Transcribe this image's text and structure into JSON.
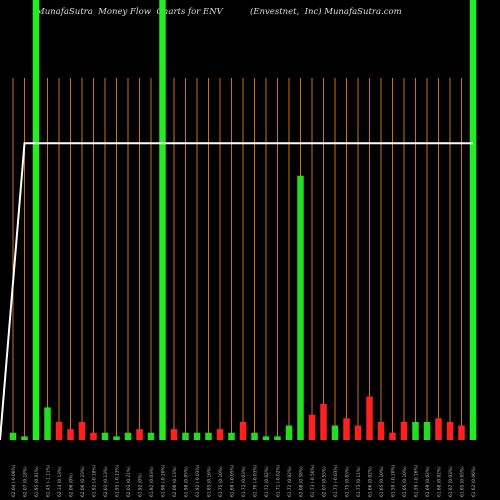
{
  "header": {
    "title_left": "MunafaSutra  Money Flow  Charts for ENV",
    "title_right": "(Envestnet,  Inc) MunafaSutra.com"
  },
  "colors": {
    "background": "#000000",
    "grid": "#c8741a",
    "up": "#22dd22",
    "down": "#ff2020",
    "price_line": "#ffffff",
    "tall_bar": "#22ee22",
    "label": "#bbbbbb"
  },
  "chart_data": {
    "type": "bar",
    "title": "MunafaSutra  Money Flow  Charts for ENV",
    "subtitle": "(Envestnet,  Inc) MunafaSutra.com",
    "categories": [
      "62.04 (-0.06%)",
      "62.07 (0.18%)",
      "61.95 (0.81%)",
      "61.45 (-1.11%)",
      "62.14 (0.13%)",
      "62.06 (0%)",
      "62.06 (0.23%)",
      "61.92 (-0.18%)",
      "62.03 (0.13%)",
      "61.95 (-0.13%)",
      "62.03 (0.21%)",
      "61.92 (0%)",
      "61.92 (0.03%)",
      "61.90 (-0.10%)",
      "62.00 (0.13%)",
      "61.98 (0.05%)",
      "61.92 (-0.03%)",
      "61.85 (0.16%)",
      "61.75 (0.10%)",
      "61.69 (-0.05%)",
      "61.72 (0.03%)",
      "61.70 (-0.03%)",
      "61.72 (0.02%)",
      "61.71 (-0.02%)",
      "61.72 (0.02%)",
      "62.08 (0.58%)",
      "61.73 (-0.56%)",
      "62.07 (0.55%)",
      "61.73 (-0.03%)",
      "61.75 (0.03%)",
      "61.73 (0.11%)",
      "61.66 (0.02%)",
      "61.65 (0.10%)",
      "61.59 (-0.10%)",
      "61.65 (0.10%)",
      "61.59 (-0.16%)",
      "61.69 (0.02%)",
      "61.68 (0.02%)",
      "61.67 (0.03%)",
      "61.65 (0.05%)",
      "61.62 (0.06%)"
    ],
    "flow_values": [
      2,
      1,
      100,
      9,
      5,
      3,
      5,
      2,
      2,
      1,
      2,
      3,
      2,
      100,
      3,
      2,
      2,
      2,
      3,
      2,
      5,
      2,
      1,
      1,
      4,
      73,
      7,
      10,
      4,
      6,
      4,
      12,
      5,
      2,
      5,
      5,
      5,
      6,
      5,
      4,
      100
    ],
    "flow_directions": [
      "up",
      "up",
      "up",
      "up",
      "down",
      "down",
      "down",
      "down",
      "up",
      "up",
      "up",
      "down",
      "up",
      "up",
      "down",
      "up",
      "up",
      "up",
      "down",
      "up",
      "down",
      "up",
      "up",
      "up",
      "up",
      "up",
      "down",
      "down",
      "up",
      "down",
      "down",
      "down",
      "down",
      "down",
      "down",
      "up",
      "up",
      "down",
      "down",
      "down",
      "up"
    ],
    "price_line": [
      0,
      82,
      82,
      82,
      82,
      82,
      82,
      82,
      82,
      82,
      82,
      82,
      82,
      82,
      82,
      82,
      82,
      82,
      82,
      82,
      82,
      82,
      82,
      82,
      82,
      82,
      82,
      82,
      82,
      82,
      82,
      82,
      82,
      82,
      82,
      82,
      82,
      82,
      82,
      82,
      82
    ],
    "ylim": [
      0,
      100
    ],
    "grid": true,
    "xlabel": "",
    "ylabel": ""
  }
}
